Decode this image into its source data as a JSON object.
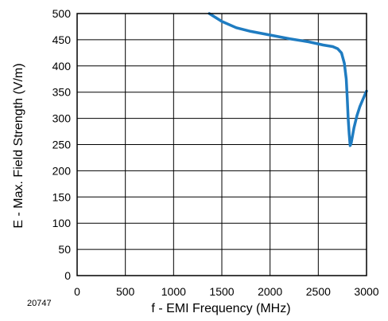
{
  "chart_data": {
    "type": "line",
    "xlabel": "f - EMI Frequency (MHz)",
    "ylabel": "E - Max. Field Strength (V/m)",
    "xlim": [
      0,
      3000
    ],
    "ylim": [
      0,
      500
    ],
    "x_ticks": [
      "0",
      "500",
      "1000",
      "1500",
      "2000",
      "2500",
      "3000"
    ],
    "y_ticks": [
      "0",
      "50",
      "100",
      "150",
      "200",
      "250",
      "300",
      "350",
      "400",
      "450",
      "500"
    ],
    "grid": true,
    "legend": "none",
    "figure_number": "20747",
    "series": [
      {
        "color": "#1f7cc1",
        "x": [
          1370,
          1500,
          1650,
          1800,
          2000,
          2200,
          2400,
          2550,
          2650,
          2700,
          2740,
          2770,
          2790,
          2800,
          2810,
          2820,
          2830,
          2840,
          2850,
          2870,
          2900,
          2930,
          2960,
          2990,
          3000
        ],
        "y": [
          500,
          485,
          473,
          466,
          459,
          452,
          446,
          440,
          437,
          433,
          425,
          405,
          375,
          340,
          300,
          270,
          248,
          252,
          262,
          282,
          305,
          322,
          335,
          348,
          352
        ]
      }
    ]
  }
}
